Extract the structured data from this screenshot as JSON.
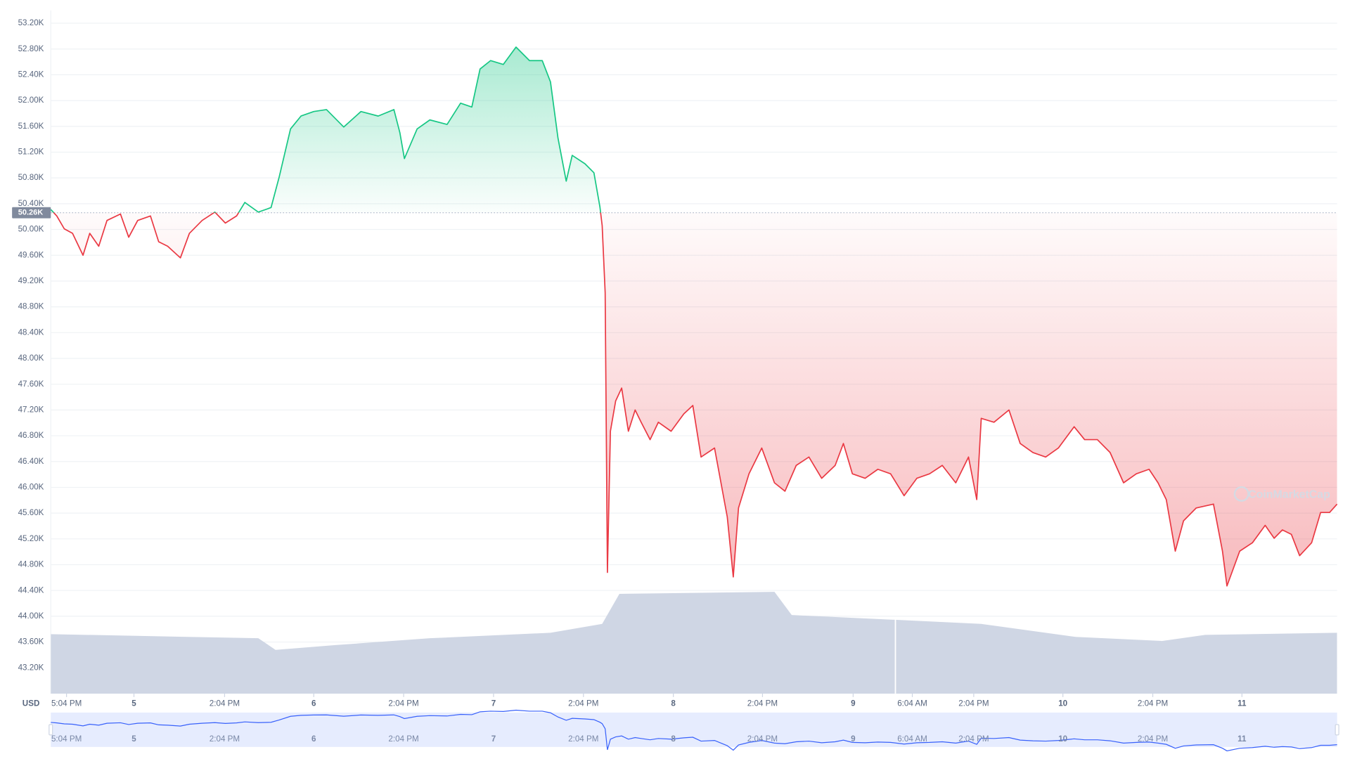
{
  "chart_data": {
    "type": "line",
    "currency_label": "USD",
    "watermark": "CoinMarketCap",
    "up_color": "#16c784",
    "down_color": "#ea3943",
    "volume_color": "#cfd6e4",
    "navigator_color": "#3861fb",
    "grid": true,
    "baseline": {
      "value": 50260,
      "label": "50.26K"
    },
    "xlim": [
      -11.1,
      160.6
    ],
    "ylim": [
      42800,
      53400
    ],
    "xticks": [
      {
        "value": -9.0,
        "label": "5:04 PM"
      },
      {
        "value": 0,
        "label": "5"
      },
      {
        "value": 12.1,
        "label": "2:04 PM"
      },
      {
        "value": 24.0,
        "label": "6"
      },
      {
        "value": 36.0,
        "label": "2:04 PM"
      },
      {
        "value": 48.0,
        "label": "7"
      },
      {
        "value": 60.0,
        "label": "2:04 PM"
      },
      {
        "value": 72.0,
        "label": "8"
      },
      {
        "value": 83.9,
        "label": "2:04 PM"
      },
      {
        "value": 96.0,
        "label": "9"
      },
      {
        "value": 103.9,
        "label": "6:04 AM"
      },
      {
        "value": 112.1,
        "label": "2:04 PM"
      },
      {
        "value": 124.0,
        "label": "10"
      },
      {
        "value": 136.0,
        "label": "2:04 PM"
      },
      {
        "value": 147.9,
        "label": "11"
      }
    ],
    "yticks": [
      {
        "value": 43200,
        "label": "43.20K"
      },
      {
        "value": 43600,
        "label": "43.60K"
      },
      {
        "value": 44000,
        "label": "44.00K"
      },
      {
        "value": 44400,
        "label": "44.40K"
      },
      {
        "value": 44800,
        "label": "44.80K"
      },
      {
        "value": 45200,
        "label": "45.20K"
      },
      {
        "value": 45600,
        "label": "45.60K"
      },
      {
        "value": 46000,
        "label": "46.00K"
      },
      {
        "value": 46400,
        "label": "46.40K"
      },
      {
        "value": 46800,
        "label": "46.80K"
      },
      {
        "value": 47200,
        "label": "47.20K"
      },
      {
        "value": 47600,
        "label": "47.60K"
      },
      {
        "value": 48000,
        "label": "48.00K"
      },
      {
        "value": 48400,
        "label": "48.40K"
      },
      {
        "value": 48800,
        "label": "48.80K"
      },
      {
        "value": 49200,
        "label": "49.20K"
      },
      {
        "value": 49600,
        "label": "49.60K"
      },
      {
        "value": 50000,
        "label": "50.00K"
      },
      {
        "value": 50400,
        "label": "50.40K"
      },
      {
        "value": 50800,
        "label": "50.80K"
      },
      {
        "value": 51200,
        "label": "51.20K"
      },
      {
        "value": 51600,
        "label": "51.60K"
      },
      {
        "value": 52000,
        "label": "52.00K"
      },
      {
        "value": 52400,
        "label": "52.40K"
      },
      {
        "value": 52800,
        "label": "52.80K"
      },
      {
        "value": 53200,
        "label": "53.20K"
      }
    ],
    "x": [
      -11.1,
      -10.3,
      -9.3,
      -8.2,
      -6.8,
      -5.9,
      -4.7,
      -3.6,
      -1.8,
      -0.7,
      0.5,
      2.2,
      3.3,
      4.5,
      6.2,
      7.4,
      9.1,
      10.8,
      12.2,
      13.7,
      14.8,
      16.6,
      18.3,
      19.4,
      20.9,
      22.3,
      24.0,
      25.7,
      28.0,
      30.3,
      32.6,
      34.7,
      35.5,
      36.1,
      37.8,
      39.5,
      41.8,
      43.6,
      45.1,
      46.2,
      47.6,
      49.3,
      51.0,
      52.8,
      54.5,
      55.6,
      56.6,
      57.7,
      58.5,
      60.2,
      61.4,
      62.2,
      62.5,
      62.9,
      63.2,
      63.6,
      64.3,
      65.1,
      66.0,
      66.9,
      67.7,
      68.9,
      70.0,
      71.7,
      73.4,
      74.6,
      75.7,
      77.5,
      79.2,
      80.0,
      80.7,
      82.1,
      83.8,
      85.5,
      86.9,
      88.4,
      90.1,
      91.8,
      93.6,
      94.7,
      95.9,
      97.6,
      99.3,
      101.0,
      102.8,
      104.5,
      106.2,
      107.9,
      109.7,
      111.4,
      112.5,
      113.1,
      114.8,
      116.8,
      118.3,
      120.0,
      121.7,
      123.4,
      125.5,
      126.9,
      128.6,
      130.3,
      132.1,
      133.8,
      135.5,
      136.7,
      137.8,
      139.0,
      140.1,
      141.8,
      144.1,
      145.3,
      145.9,
      147.6,
      149.3,
      151.0,
      152.2,
      153.3,
      154.5,
      155.6,
      157.2,
      158.4,
      159.6,
      160.6
    ],
    "values": [
      50310,
      50210,
      50010,
      49940,
      49600,
      49940,
      49740,
      50140,
      50240,
      49880,
      50140,
      50210,
      49810,
      49740,
      49560,
      49940,
      50140,
      50270,
      50100,
      50210,
      50420,
      50270,
      50340,
      50820,
      51560,
      51760,
      51830,
      51860,
      51590,
      51830,
      51760,
      51860,
      51500,
      51100,
      51560,
      51700,
      51630,
      51960,
      51900,
      52490,
      52620,
      52560,
      52830,
      52620,
      52620,
      52290,
      51420,
      50750,
      51150,
      51020,
      50880,
      50350,
      50060,
      49020,
      44680,
      46870,
      47340,
      47540,
      46870,
      47200,
      47010,
      46740,
      47010,
      46870,
      47140,
      47270,
      46470,
      46610,
      45540,
      44610,
      45680,
      46210,
      46610,
      46070,
      45940,
      46340,
      46470,
      46140,
      46340,
      46680,
      46210,
      46140,
      46280,
      46210,
      45870,
      46140,
      46210,
      46340,
      46070,
      46470,
      45810,
      47070,
      47010,
      47200,
      46680,
      46540,
      46470,
      46610,
      46940,
      46740,
      46740,
      46540,
      46070,
      46210,
      46280,
      46070,
      45810,
      45010,
      45480,
      45680,
      45740,
      45010,
      44470,
      45010,
      45140,
      45410,
      45210,
      45340,
      45270,
      44940,
      45140,
      45610,
      45610,
      45740
    ],
    "volume": {
      "ylim": [
        0,
        100
      ],
      "x": [
        -11.1,
        16.6,
        18.9,
        26.9,
        39.5,
        55.6,
        62.5,
        64.8,
        85.5,
        87.8,
        101.6,
        113.1,
        125.7,
        137.2,
        143.0,
        160.6
      ],
      "values": [
        8.7,
        8.1,
        6.4,
        7.1,
        8.1,
        8.9,
        10.2,
        14.6,
        14.9,
        11.5,
        10.8,
        10.2,
        8.3,
        7.7,
        8.6,
        8.9
      ]
    }
  }
}
